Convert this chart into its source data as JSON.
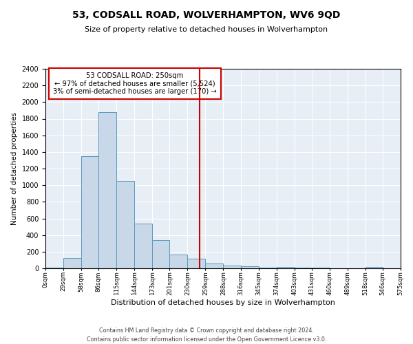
{
  "title": "53, CODSALL ROAD, WOLVERHAMPTON, WV6 9QD",
  "subtitle": "Size of property relative to detached houses in Wolverhampton",
  "xlabel": "Distribution of detached houses by size in Wolverhampton",
  "ylabel": "Number of detached properties",
  "bin_edges": [
    0,
    29,
    58,
    86,
    115,
    144,
    173,
    201,
    230,
    259,
    288,
    316,
    345,
    374,
    403,
    431,
    460,
    489,
    518,
    546,
    575
  ],
  "bar_heights": [
    5,
    125,
    1350,
    1880,
    1050,
    540,
    340,
    165,
    115,
    60,
    30,
    25,
    10,
    20,
    5,
    5,
    3,
    0,
    20,
    0
  ],
  "tick_labels": [
    "0sqm",
    "29sqm",
    "58sqm",
    "86sqm",
    "115sqm",
    "144sqm",
    "173sqm",
    "201sqm",
    "230sqm",
    "259sqm",
    "288sqm",
    "316sqm",
    "345sqm",
    "374sqm",
    "403sqm",
    "431sqm",
    "460sqm",
    "489sqm",
    "518sqm",
    "546sqm",
    "575sqm"
  ],
  "bar_color": "#c8d8e8",
  "bar_edge_color": "#5a9abf",
  "bg_color": "#e8eef5",
  "grid_color": "#ffffff",
  "vline_x": 250,
  "vline_color": "#cc0000",
  "ylim": [
    0,
    2400
  ],
  "yticks": [
    0,
    200,
    400,
    600,
    800,
    1000,
    1200,
    1400,
    1600,
    1800,
    2000,
    2200,
    2400
  ],
  "annotation_box_text": "53 CODSALL ROAD: 250sqm\n← 97% of detached houses are smaller (5,524)\n3% of semi-detached houses are larger (170) →",
  "annotation_box_edge_color": "#cc0000",
  "fig_bg_color": "#ffffff",
  "footer_line1": "Contains HM Land Registry data © Crown copyright and database right 2024.",
  "footer_line2": "Contains public sector information licensed under the Open Government Licence v3.0."
}
